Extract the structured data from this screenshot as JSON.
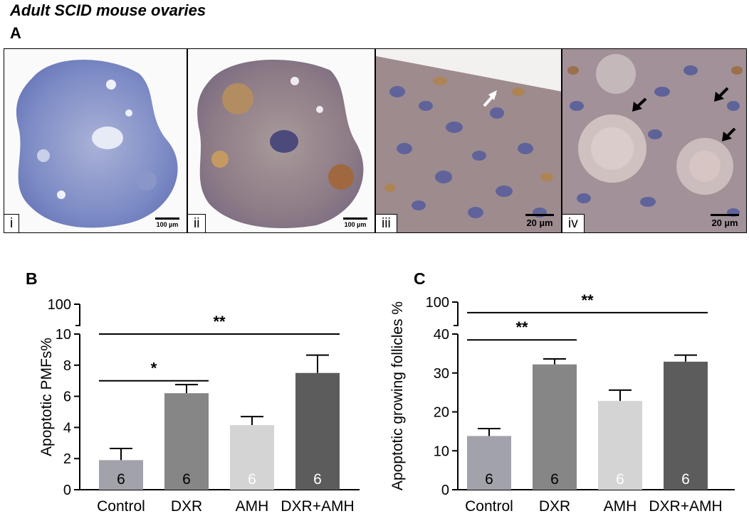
{
  "figure_title": "Adult SCID mouse ovaries",
  "panel_a": {
    "letter": "A",
    "images": [
      {
        "label": "i",
        "scale_bar": "100 µm",
        "stain": "blue-control"
      },
      {
        "label": "ii",
        "scale_bar": "100 µm",
        "stain": "brown-positive"
      },
      {
        "label": "iii",
        "scale_bar": "20 µm",
        "stain": "high-magnification",
        "arrows": 1,
        "arrow_color": "#ffffff"
      },
      {
        "label": "iv",
        "scale_bar": "20 µm",
        "stain": "high-magnification",
        "arrows": 3,
        "arrow_color": "#000000"
      }
    ]
  },
  "chart_data": [
    {
      "panel": "B",
      "type": "bar",
      "ylabel": "Apoptotic PMFs%",
      "categories": [
        "Control",
        "DXR",
        "AMH",
        "DXR+AMH"
      ],
      "values": [
        1.9,
        6.2,
        4.15,
        7.5
      ],
      "errors": [
        0.75,
        0.55,
        0.55,
        1.15
      ],
      "n": [
        "6",
        "6",
        "6",
        "6"
      ],
      "bar_colors": [
        "#a2a2aa",
        "#868686",
        "#d4d4d4",
        "#5c5c5c"
      ],
      "n_label_colors": [
        "#000000",
        "#000000",
        "#ffffff",
        "#ffffff"
      ],
      "ylim": [
        0,
        10
      ],
      "yticks": [
        "0",
        "2",
        "4",
        "6",
        "8",
        "10"
      ],
      "ytick_values": [
        0,
        2,
        4,
        6,
        8,
        10
      ],
      "axis_break_top_tick": "100",
      "significance": [
        {
          "from": 0,
          "to": 1,
          "label": "*",
          "level": 7.0
        },
        {
          "from": 0,
          "to": 3,
          "label": "**",
          "level": 10.0
        }
      ]
    },
    {
      "panel": "C",
      "type": "bar",
      "ylabel": "Apoptotic growing follicles %",
      "categories": [
        "Control",
        "DXR",
        "AMH",
        "DXR+AMH"
      ],
      "values": [
        13.8,
        32.2,
        22.8,
        32.9
      ],
      "errors": [
        1.9,
        1.4,
        2.8,
        1.7
      ],
      "n": [
        "6",
        "6",
        "6",
        "6"
      ],
      "bar_colors": [
        "#a2a2aa",
        "#868686",
        "#d4d4d4",
        "#5c5c5c"
      ],
      "n_label_colors": [
        "#000000",
        "#000000",
        "#ffffff",
        "#ffffff"
      ],
      "ylim": [
        0,
        40
      ],
      "yticks": [
        "0",
        "10",
        "20",
        "30",
        "40"
      ],
      "ytick_values": [
        0,
        10,
        20,
        30,
        40
      ],
      "axis_break_top_tick": "100",
      "significance": [
        {
          "from": 0,
          "to": 1,
          "label": "**",
          "level": 38.5
        },
        {
          "from": 0,
          "to": 3,
          "label": "**",
          "level": 45.5
        }
      ]
    }
  ]
}
